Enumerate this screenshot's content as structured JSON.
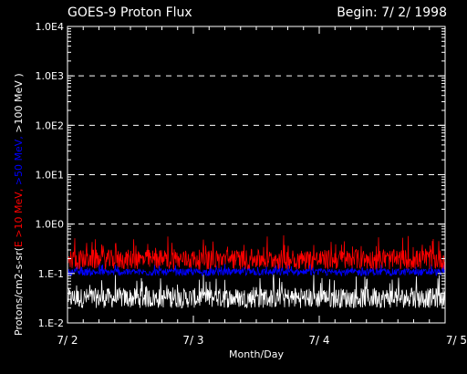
{
  "chart_data": {
    "type": "line",
    "title": "GOES-9 Proton Flux",
    "subtitle": "Begin: 7/ 2/ 1998",
    "xlabel": "Month/Day",
    "ylabel_parts": [
      {
        "text": "Protons/cm2-s-sr(",
        "color": "#ffffff"
      },
      {
        "text": "E >10 MeV, ",
        "color": "#ff0000"
      },
      {
        "text": ">50 MeV, ",
        "color": "#0000ff"
      },
      {
        "text": ">100 MeV )",
        "color": "#ffffff"
      }
    ],
    "yscale": "log",
    "ylim": [
      0.01,
      10000
    ],
    "yticks": [
      {
        "value": 0.01,
        "label": "1.E-2"
      },
      {
        "value": 0.1,
        "label": "1.E-1"
      },
      {
        "value": 1,
        "label": "1.0E0"
      },
      {
        "value": 10,
        "label": "1.0E1"
      },
      {
        "value": 100,
        "label": "1.0E2"
      },
      {
        "value": 1000,
        "label": "1.0E3"
      },
      {
        "value": 10000,
        "label": "1.0E4"
      }
    ],
    "grid_y_values": [
      1,
      10,
      100,
      1000
    ],
    "xlim": [
      "1998-07-02",
      "1998-07-05"
    ],
    "xticks": [
      {
        "value": "1998-07-02",
        "label": "7/ 2"
      },
      {
        "value": "1998-07-03",
        "label": "7/ 3"
      },
      {
        "value": "1998-07-04",
        "label": "7/ 4"
      },
      {
        "value": "1998-07-05",
        "label": "7/ 5"
      }
    ],
    "series": [
      {
        "name": "E >10 MeV",
        "color": "#ff0000",
        "approx_range": [
          0.12,
          0.6
        ]
      },
      {
        "name": ">50 MeV",
        "color": "#0000ff",
        "approx_range": [
          0.09,
          0.16
        ]
      },
      {
        "name": ">100 MeV",
        "color": "#ffffff",
        "approx_range": [
          0.02,
          0.1
        ]
      }
    ]
  }
}
